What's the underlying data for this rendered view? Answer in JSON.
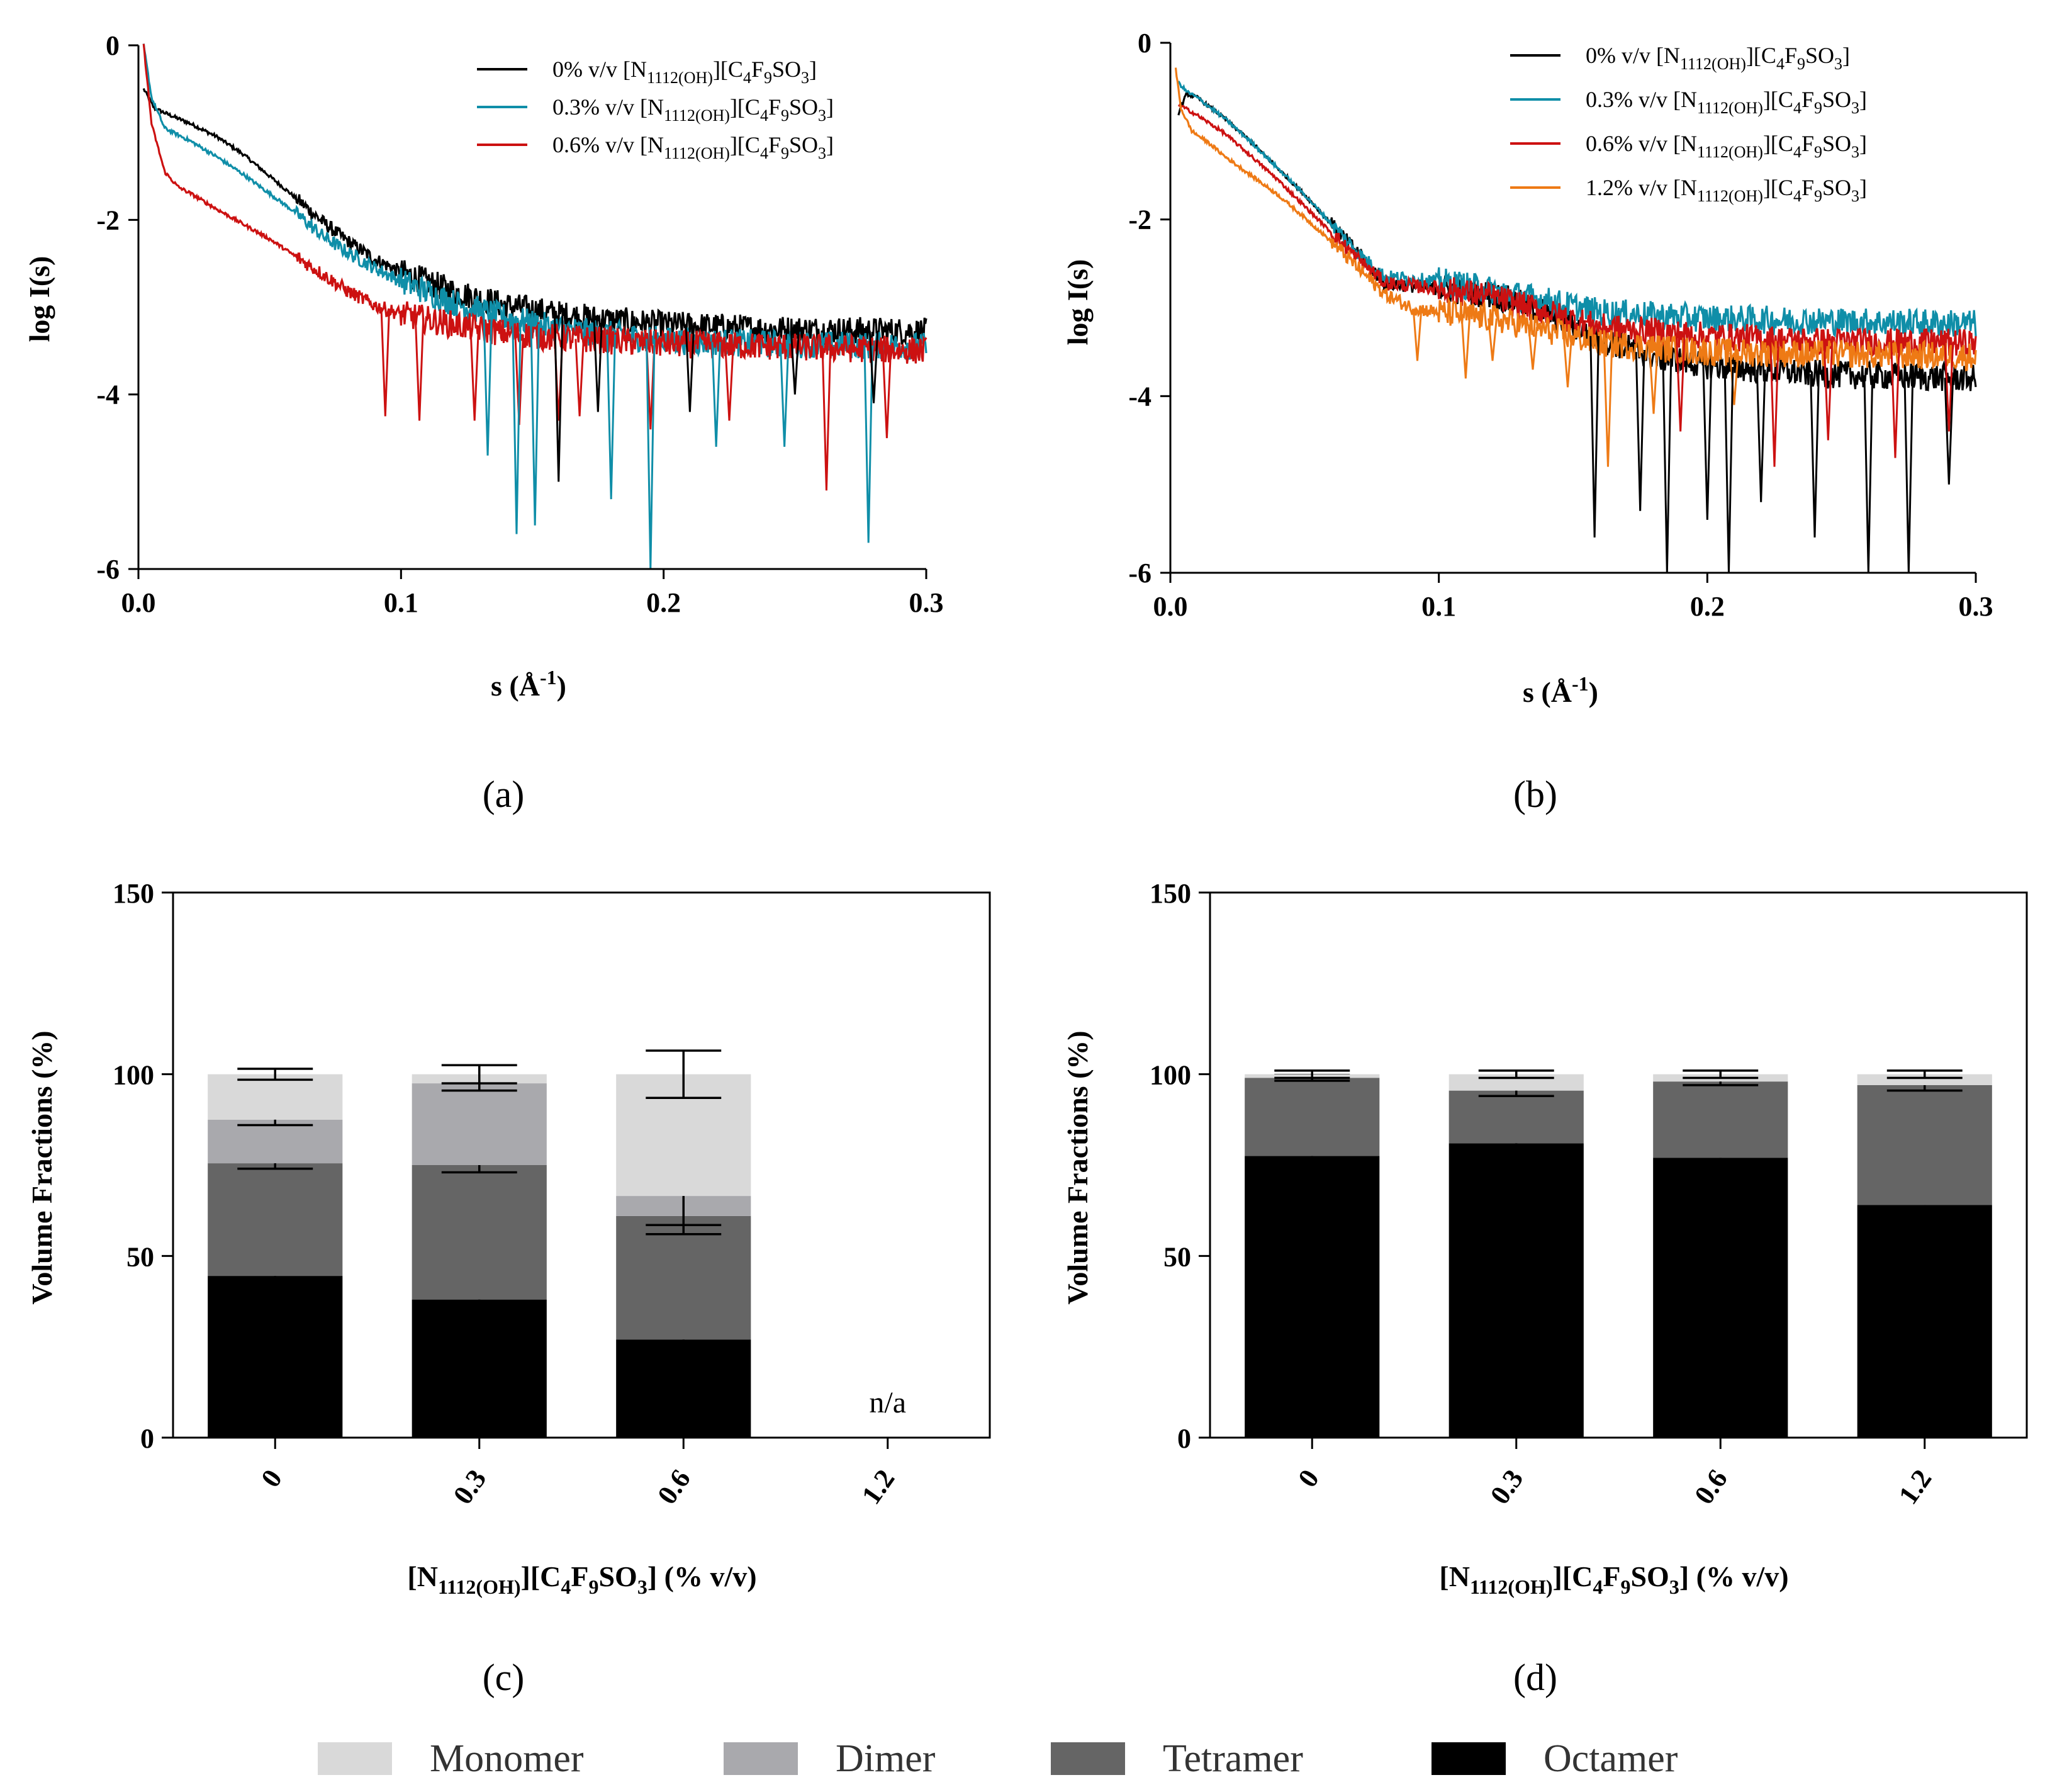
{
  "colors": {
    "black": "#000000",
    "cyan": "#0f8ea8",
    "red": "#cc1111",
    "orange": "#ee7a15",
    "monomer": "#d9d9d9",
    "dimer": "#a9a9ad",
    "tetramer": "#656565",
    "octamer": "#000000"
  },
  "bottom_legend": [
    "Monomer",
    "Dimer",
    "Tetramer",
    "Octamer"
  ],
  "chart_data": [
    {
      "panel": "a",
      "label": "(a)",
      "type": "line",
      "xlabel_main": "s (Å",
      "xlabel_sup": "-1",
      "xlabel_end": ")",
      "ylabel": "log I(s)",
      "xlim": [
        0,
        0.3
      ],
      "ylim": [
        -6,
        0
      ],
      "xticks": [
        0.0,
        0.1,
        0.2,
        0.3
      ],
      "xticklabels": [
        "0.0",
        "0.1",
        "0.2",
        "0.3"
      ],
      "yticks": [
        0,
        -2,
        -4,
        -6
      ],
      "yticklabels": [
        "0",
        "-2",
        "-4",
        "-6"
      ],
      "series": [
        {
          "name": "0% v/v [N1112(OH)][C4F9SO3]",
          "conc": "0% v/v",
          "color_key": "black",
          "points": [
            [
              0.002,
              -0.5
            ],
            [
              0.006,
              -0.72
            ],
            [
              0.012,
              -0.8
            ],
            [
              0.02,
              -0.9
            ],
            [
              0.03,
              -1.05
            ],
            [
              0.04,
              -1.25
            ],
            [
              0.05,
              -1.5
            ],
            [
              0.06,
              -1.75
            ],
            [
              0.07,
              -2.02
            ],
            [
              0.08,
              -2.25
            ],
            [
              0.09,
              -2.45
            ],
            [
              0.1,
              -2.6
            ],
            [
              0.12,
              -2.82
            ],
            [
              0.14,
              -2.98
            ],
            [
              0.16,
              -3.08
            ],
            [
              0.18,
              -3.15
            ],
            [
              0.2,
              -3.2
            ],
            [
              0.24,
              -3.25
            ],
            [
              0.3,
              -3.28
            ]
          ]
        },
        {
          "name": "0.3% v/v [N1112(OH)][C4F9SO3]",
          "conc": "0.3% v/v",
          "color_key": "cyan",
          "points": [
            [
              0.002,
              0.0
            ],
            [
              0.005,
              -0.6
            ],
            [
              0.01,
              -0.95
            ],
            [
              0.02,
              -1.1
            ],
            [
              0.03,
              -1.28
            ],
            [
              0.04,
              -1.48
            ],
            [
              0.05,
              -1.7
            ],
            [
              0.06,
              -1.92
            ],
            [
              0.07,
              -2.18
            ],
            [
              0.08,
              -2.38
            ],
            [
              0.09,
              -2.55
            ],
            [
              0.1,
              -2.7
            ],
            [
              0.12,
              -2.95
            ],
            [
              0.14,
              -3.12
            ],
            [
              0.16,
              -3.25
            ],
            [
              0.2,
              -3.38
            ],
            [
              0.24,
              -3.42
            ],
            [
              0.3,
              -3.45
            ]
          ]
        },
        {
          "name": "0.6% v/v [N1112(OH)][C4F9SO3]",
          "conc": "0.6% v/v",
          "color_key": "red",
          "points": [
            [
              0.002,
              0.0
            ],
            [
              0.005,
              -0.9
            ],
            [
              0.01,
              -1.45
            ],
            [
              0.015,
              -1.62
            ],
            [
              0.02,
              -1.7
            ],
            [
              0.03,
              -1.88
            ],
            [
              0.04,
              -2.05
            ],
            [
              0.05,
              -2.22
            ],
            [
              0.06,
              -2.42
            ],
            [
              0.07,
              -2.62
            ],
            [
              0.08,
              -2.82
            ],
            [
              0.09,
              -2.98
            ],
            [
              0.1,
              -3.08
            ],
            [
              0.12,
              -3.2
            ],
            [
              0.14,
              -3.3
            ],
            [
              0.16,
              -3.35
            ],
            [
              0.2,
              -3.42
            ],
            [
              0.24,
              -3.45
            ],
            [
              0.3,
              -3.5
            ]
          ]
        }
      ],
      "spikes": [
        {
          "color_key": "red",
          "x": [
            0.094,
            0.107,
            0.128,
            0.145,
            0.16,
            0.168,
            0.195,
            0.225,
            0.262,
            0.285
          ],
          "y": [
            -4.25,
            -4.3,
            -4.3,
            -4.35,
            -4.3,
            -4.25,
            -4.4,
            -4.3,
            -5.1,
            -4.5
          ]
        },
        {
          "color_key": "cyan",
          "x": [
            0.133,
            0.144,
            0.151,
            0.18,
            0.195,
            0.22,
            0.246,
            0.278
          ],
          "y": [
            -4.7,
            -5.6,
            -5.5,
            -5.2,
            -6.0,
            -4.6,
            -4.6,
            -5.7
          ]
        },
        {
          "color_key": "black",
          "x": [
            0.16,
            0.175,
            0.21,
            0.25,
            0.28
          ],
          "y": [
            -5.0,
            -4.2,
            -4.2,
            -4.0,
            -4.1
          ]
        }
      ]
    },
    {
      "panel": "b",
      "label": "(b)",
      "type": "line",
      "xlabel_main": "s (Å",
      "xlabel_sup": "-1",
      "xlabel_end": ")",
      "ylabel": "log I(s)",
      "xlim": [
        0,
        0.3
      ],
      "ylim": [
        -6,
        0
      ],
      "xticks": [
        0.0,
        0.1,
        0.2,
        0.3
      ],
      "xticklabels": [
        "0.0",
        "0.1",
        "0.2",
        "0.3"
      ],
      "yticks": [
        0,
        -2,
        -4,
        -6
      ],
      "yticklabels": [
        "0",
        "-2",
        "-4",
        "-6"
      ],
      "series": [
        {
          "name": "0% v/v [N1112(OH)][C4F9SO3]",
          "conc": "0% v/v",
          "color_key": "black",
          "points": [
            [
              0.003,
              -0.8
            ],
            [
              0.006,
              -0.58
            ],
            [
              0.01,
              -0.62
            ],
            [
              0.02,
              -0.85
            ],
            [
              0.03,
              -1.12
            ],
            [
              0.04,
              -1.42
            ],
            [
              0.05,
              -1.72
            ],
            [
              0.06,
              -2.05
            ],
            [
              0.07,
              -2.38
            ],
            [
              0.08,
              -2.72
            ],
            [
              0.1,
              -2.78
            ],
            [
              0.12,
              -2.85
            ],
            [
              0.14,
              -3.05
            ],
            [
              0.16,
              -3.35
            ],
            [
              0.18,
              -3.55
            ],
            [
              0.2,
              -3.65
            ],
            [
              0.24,
              -3.75
            ],
            [
              0.3,
              -3.8
            ]
          ]
        },
        {
          "name": "0.3% v/v [N1112(OH)][C4F9SO3]",
          "conc": "0.3% v/v",
          "color_key": "cyan",
          "points": [
            [
              0.003,
              -0.45
            ],
            [
              0.006,
              -0.55
            ],
            [
              0.01,
              -0.62
            ],
            [
              0.02,
              -0.85
            ],
            [
              0.03,
              -1.12
            ],
            [
              0.04,
              -1.42
            ],
            [
              0.05,
              -1.72
            ],
            [
              0.06,
              -2.05
            ],
            [
              0.07,
              -2.38
            ],
            [
              0.08,
              -2.65
            ],
            [
              0.1,
              -2.7
            ],
            [
              0.12,
              -2.8
            ],
            [
              0.14,
              -2.92
            ],
            [
              0.16,
              -3.05
            ],
            [
              0.2,
              -3.12
            ],
            [
              0.24,
              -3.15
            ],
            [
              0.3,
              -3.18
            ]
          ]
        },
        {
          "name": "0.6% v/v [N1112(OH)][C4F9SO3]",
          "conc": "0.6% v/v",
          "color_key": "red",
          "points": [
            [
              0.003,
              -0.7
            ],
            [
              0.006,
              -0.75
            ],
            [
              0.01,
              -0.82
            ],
            [
              0.02,
              -1.02
            ],
            [
              0.03,
              -1.28
            ],
            [
              0.04,
              -1.55
            ],
            [
              0.05,
              -1.85
            ],
            [
              0.06,
              -2.15
            ],
            [
              0.07,
              -2.45
            ],
            [
              0.08,
              -2.72
            ],
            [
              0.1,
              -2.78
            ],
            [
              0.12,
              -2.88
            ],
            [
              0.14,
              -3.05
            ],
            [
              0.16,
              -3.22
            ],
            [
              0.2,
              -3.32
            ],
            [
              0.24,
              -3.38
            ],
            [
              0.3,
              -3.4
            ]
          ]
        },
        {
          "name": "1.2% v/v [N1112(OH)][C4F9SO3]",
          "conc": "1.2% v/v",
          "color_key": "orange",
          "points": [
            [
              0.002,
              -0.3
            ],
            [
              0.004,
              -0.75
            ],
            [
              0.008,
              -1.0
            ],
            [
              0.015,
              -1.15
            ],
            [
              0.02,
              -1.28
            ],
            [
              0.03,
              -1.5
            ],
            [
              0.04,
              -1.72
            ],
            [
              0.05,
              -1.98
            ],
            [
              0.06,
              -2.25
            ],
            [
              0.07,
              -2.55
            ],
            [
              0.08,
              -2.85
            ],
            [
              0.09,
              -3.0
            ],
            [
              0.1,
              -3.05
            ],
            [
              0.12,
              -3.12
            ],
            [
              0.14,
              -3.25
            ],
            [
              0.16,
              -3.4
            ],
            [
              0.2,
              -3.5
            ],
            [
              0.3,
              -3.55
            ]
          ]
        }
      ],
      "spikes": [
        {
          "color_key": "orange",
          "x": [
            0.092,
            0.11,
            0.12,
            0.135,
            0.148,
            0.163,
            0.18,
            0.21
          ],
          "y": [
            -3.6,
            -3.8,
            -3.6,
            -3.7,
            -3.9,
            -4.8,
            -4.2,
            -4.1
          ]
        },
        {
          "color_key": "red",
          "x": [
            0.19,
            0.225,
            0.245,
            0.27,
            0.29
          ],
          "y": [
            -4.4,
            -4.8,
            -4.5,
            -4.7,
            -4.4
          ]
        },
        {
          "color_key": "black",
          "x": [
            0.158,
            0.175,
            0.185,
            0.2,
            0.208,
            0.22,
            0.24,
            0.26,
            0.275,
            0.29
          ],
          "y": [
            -5.6,
            -5.3,
            -6.0,
            -5.4,
            -6.0,
            -5.2,
            -5.6,
            -6.0,
            -6.0,
            -5.0
          ]
        }
      ]
    },
    {
      "panel": "c",
      "label": "(c)",
      "type": "bar",
      "stacked": true,
      "xlabel": "[N1112(OH)][C4F9SO3] (% v/v)",
      "ylabel": "Volume Fractions (%)",
      "ylim": [
        0,
        150
      ],
      "yticks": [
        0,
        50,
        100,
        150
      ],
      "yticklabels": [
        "0",
        "50",
        "100",
        "150"
      ],
      "categories": [
        "0",
        "0.3",
        "0.6",
        "1.2"
      ],
      "annotation": "n/a",
      "annotation_category": "1.2",
      "series": [
        {
          "name": "Octamer",
          "color_key": "octamer",
          "values": [
            44.5,
            38.0,
            27.0,
            null
          ],
          "errors": [
            1,
            1,
            2.5,
            null
          ]
        },
        {
          "name": "Tetramer",
          "color_key": "tetramer",
          "values": [
            31.0,
            37.0,
            34.0,
            null
          ],
          "errors": [
            1.5,
            2,
            5,
            null
          ]
        },
        {
          "name": "Dimer",
          "color_key": "dimer",
          "values": [
            12.0,
            22.5,
            5.5,
            null
          ],
          "errors": [
            1.5,
            2,
            8,
            null
          ]
        },
        {
          "name": "Monomer",
          "color_key": "monomer",
          "values": [
            12.5,
            2.5,
            33.5,
            null
          ],
          "errors": [
            1.5,
            2.5,
            6.5,
            null
          ]
        }
      ]
    },
    {
      "panel": "d",
      "label": "(d)",
      "type": "bar",
      "stacked": true,
      "xlabel": "[N1112(OH)][C4F9SO3] (% v/v)",
      "ylabel": "Volume Fractions (%)",
      "ylim": [
        0,
        150
      ],
      "yticks": [
        0,
        50,
        100,
        150
      ],
      "yticklabels": [
        "0",
        "50",
        "100",
        "150"
      ],
      "categories": [
        "0",
        "0.3",
        "0.6",
        "1.2"
      ],
      "series": [
        {
          "name": "Octamer",
          "color_key": "octamer",
          "values": [
            77.5,
            81.0,
            77.0,
            64.0
          ],
          "errors": [
            0.8,
            1,
            0.8,
            1.5
          ]
        },
        {
          "name": "Tetramer",
          "color_key": "tetramer",
          "values": [
            21.5,
            14.5,
            21.0,
            33.0
          ],
          "errors": [
            0.8,
            1.5,
            1,
            1.5
          ]
        },
        {
          "name": "Dimer",
          "color_key": "dimer",
          "values": [
            0,
            0,
            0,
            0
          ],
          "errors": [
            0,
            0,
            0,
            0
          ]
        },
        {
          "name": "Monomer",
          "color_key": "monomer",
          "values": [
            1.0,
            4.5,
            2.0,
            3.0
          ],
          "errors": [
            1,
            1,
            1,
            1
          ]
        }
      ]
    }
  ]
}
